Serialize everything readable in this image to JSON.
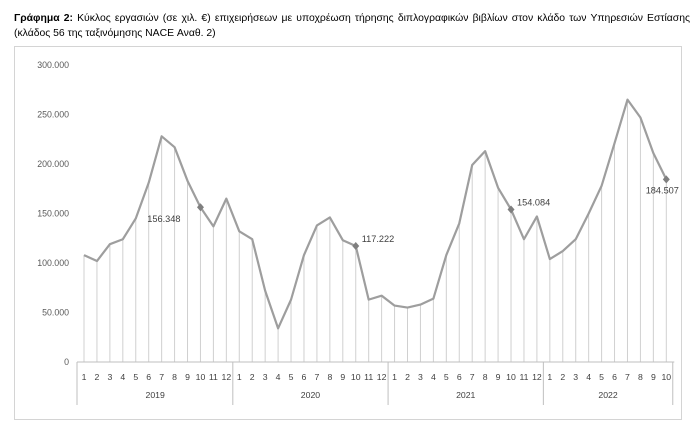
{
  "caption": {
    "label": "Γράφημα 2:",
    "text": " Κύκλος εργασιών (σε χιλ. €) επιχειρήσεων με υποχρέωση τήρησης διπλογραφικών βιβλίων στον κλάδο των Υπηρεσιών Εστίασης (κλάδος 56 της ταξινόμησης NACE Αναθ. 2)"
  },
  "chart_data": {
    "type": "line",
    "title": "",
    "xlabel": "",
    "ylabel": "",
    "ylim": [
      0,
      300000
    ],
    "yticks": [
      0,
      50000,
      100000,
      150000,
      200000,
      250000,
      300000
    ],
    "ytick_labels": [
      "0",
      "50.000",
      "100.000",
      "150.000",
      "200.000",
      "250.000",
      "300.000"
    ],
    "grid": "vertical drop lines from each point",
    "colors": {
      "line": "#9e9e9e",
      "droplines": "#d0d0d0",
      "axis": "#bfbfbf"
    },
    "groups": [
      {
        "year": "2019",
        "months": [
          "1",
          "2",
          "3",
          "4",
          "5",
          "6",
          "7",
          "8",
          "9",
          "10",
          "11",
          "12"
        ]
      },
      {
        "year": "2020",
        "months": [
          "1",
          "2",
          "3",
          "4",
          "5",
          "6",
          "7",
          "8",
          "9",
          "10",
          "11",
          "12"
        ]
      },
      {
        "year": "2021",
        "months": [
          "1",
          "2",
          "3",
          "4",
          "5",
          "6",
          "7",
          "8",
          "9",
          "10",
          "11",
          "12"
        ]
      },
      {
        "year": "2022",
        "months": [
          "1",
          "2",
          "3",
          "4",
          "5",
          "6",
          "7",
          "8",
          "9",
          "10"
        ]
      }
    ],
    "values": [
      108000,
      102000,
      119000,
      124000,
      145000,
      181000,
      228000,
      217000,
      183000,
      156348,
      137000,
      165000,
      132000,
      124000,
      72000,
      34000,
      63000,
      108000,
      138000,
      146000,
      123000,
      117222,
      63000,
      67000,
      57000,
      55000,
      58000,
      64000,
      108000,
      140000,
      199000,
      213000,
      176000,
      154084,
      124000,
      147000,
      104000,
      112000,
      124000,
      150000,
      178000,
      221000,
      265000,
      247000,
      211000,
      184507
    ],
    "annotations": [
      {
        "index": 9,
        "text": "156.348",
        "side": "left"
      },
      {
        "index": 21,
        "text": "117.222",
        "side": "right"
      },
      {
        "index": 33,
        "text": "154.084",
        "side": "right"
      },
      {
        "index": 45,
        "text": "184.507",
        "side": "below"
      }
    ]
  }
}
